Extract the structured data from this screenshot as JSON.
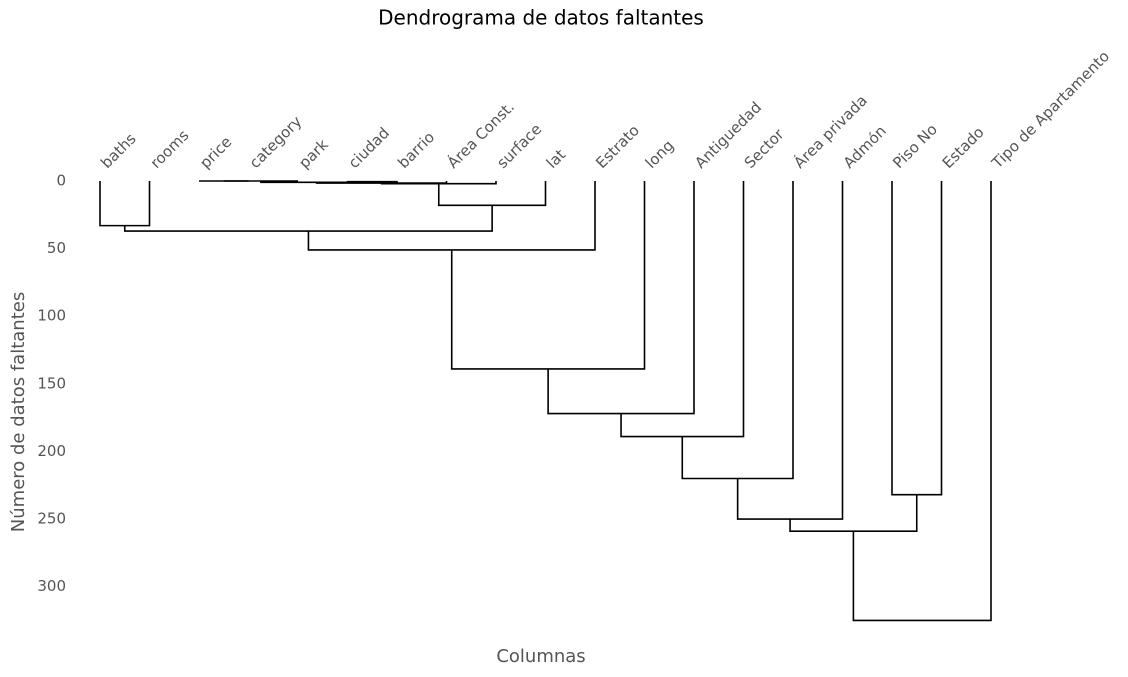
{
  "chart_data": {
    "type": "dendrogram",
    "title": "Dendrograma de datos faltantes",
    "x_label": "Columnas",
    "y_label": "Número de datos faltantes",
    "leaves": [
      "baths",
      "rooms",
      "price",
      "category",
      "park",
      "ciudad",
      "barrio",
      "Área Const.",
      "surface",
      "lat",
      "Estrato",
      "long",
      "Antiguedad",
      "Sector",
      "Área privada",
      "Admón",
      "Piso No",
      "Estado",
      "Tipo de Apartamento"
    ],
    "merges": [
      {
        "left": 2,
        "right": 3,
        "height": 0
      },
      {
        "left": 19,
        "right": 4,
        "height": 0
      },
      {
        "left": 5,
        "right": 6,
        "height": 0.5
      },
      {
        "left": 20,
        "right": 21,
        "height": 1
      },
      {
        "left": 22,
        "right": 7,
        "height": 1.5
      },
      {
        "left": 23,
        "right": 8,
        "height": 2
      },
      {
        "left": 24,
        "right": 9,
        "height": 18
      },
      {
        "left": 0,
        "right": 1,
        "height": 33
      },
      {
        "left": 26,
        "right": 25,
        "height": 37
      },
      {
        "left": 27,
        "right": 10,
        "height": 51
      },
      {
        "left": 28,
        "right": 11,
        "height": 139
      },
      {
        "left": 29,
        "right": 12,
        "height": 172
      },
      {
        "left": 30,
        "right": 13,
        "height": 189
      },
      {
        "left": 31,
        "right": 14,
        "height": 220
      },
      {
        "left": 32,
        "right": 15,
        "height": 250
      },
      {
        "left": 16,
        "right": 17,
        "height": 232
      },
      {
        "left": 33,
        "right": 34,
        "height": 259
      },
      {
        "left": 35,
        "right": 18,
        "height": 325
      }
    ],
    "color": "#000000",
    "ylim": [
      0,
      335
    ],
    "yticks": [
      0,
      50,
      100,
      150,
      200,
      250,
      300
    ],
    "y_inverted": true
  }
}
